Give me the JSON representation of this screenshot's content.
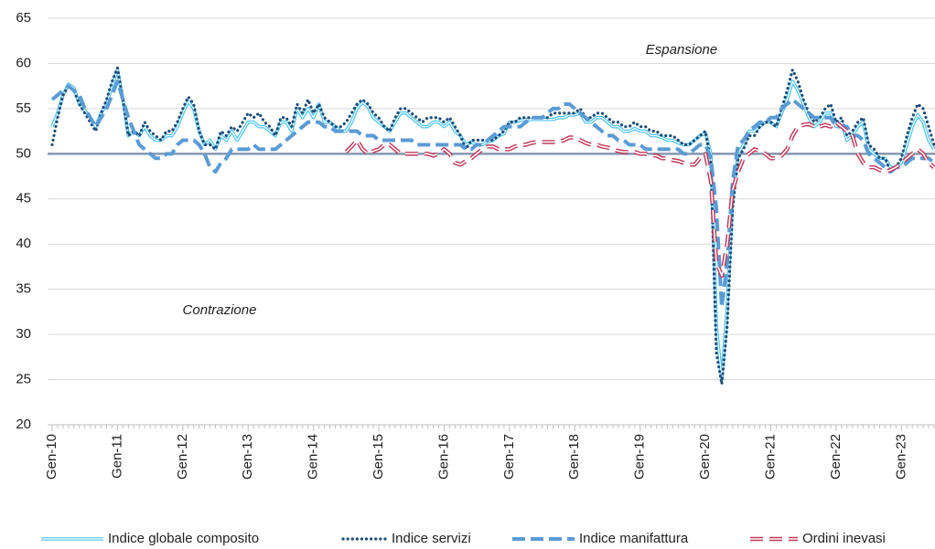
{
  "chart_data": {
    "type": "line",
    "annotations": [
      "Espansione",
      "Contrazione"
    ],
    "categories": [
      "Gen-10",
      null,
      null,
      null,
      null,
      null,
      null,
      null,
      null,
      null,
      null,
      null,
      "Gen-11",
      null,
      null,
      null,
      null,
      null,
      null,
      null,
      null,
      null,
      null,
      null,
      "Gen-12",
      null,
      null,
      null,
      null,
      null,
      null,
      null,
      null,
      null,
      null,
      null,
      "Gen-13",
      null,
      null,
      null,
      null,
      null,
      null,
      null,
      null,
      null,
      null,
      null,
      "Gen-14",
      null,
      null,
      null,
      null,
      null,
      null,
      null,
      null,
      null,
      null,
      null,
      "Gen-15",
      null,
      null,
      null,
      null,
      null,
      null,
      null,
      null,
      null,
      null,
      null,
      "Gen-16",
      null,
      null,
      null,
      null,
      null,
      null,
      null,
      null,
      null,
      null,
      null,
      "Gen-17",
      null,
      null,
      null,
      null,
      null,
      null,
      null,
      null,
      null,
      null,
      null,
      "Gen-18",
      null,
      null,
      null,
      null,
      null,
      null,
      null,
      null,
      null,
      null,
      null,
      "Gen-19",
      null,
      null,
      null,
      null,
      null,
      null,
      null,
      null,
      null,
      null,
      null,
      "Gen-20",
      null,
      null,
      null,
      null,
      null,
      null,
      null,
      null,
      null,
      null,
      null,
      "Gen-21",
      null,
      null,
      null,
      null,
      null,
      null,
      null,
      null,
      null,
      null,
      null,
      "Gen-22",
      null,
      null,
      null,
      null,
      null,
      null,
      null,
      null,
      null,
      null,
      null,
      "Gen-23",
      null,
      null,
      null,
      null,
      null,
      null
    ],
    "series": [
      {
        "name": "Indice globale composito",
        "color": "#4dc3ef",
        "style": "double",
        "values": [
          53,
          54.5,
          56.5,
          57.7,
          57.3,
          55.5,
          54.8,
          54,
          53,
          54.5,
          55.5,
          57.5,
          59.3,
          56,
          52,
          52.5,
          52,
          53,
          52,
          51.5,
          51.5,
          52,
          52,
          53,
          54.5,
          55.8,
          55,
          52.5,
          51,
          51.5,
          50.5,
          52,
          51.5,
          52.5,
          51.5,
          52.5,
          53.5,
          53.5,
          53,
          53,
          52.5,
          52,
          53.5,
          53.5,
          52.5,
          55,
          54,
          55,
          54,
          55.5,
          53.5,
          53.5,
          53,
          52.5,
          52.5,
          53.5,
          55,
          55.7,
          55.2,
          54,
          53.5,
          53,
          52.5,
          53.5,
          54.5,
          54.5,
          54,
          53.5,
          53,
          53,
          53.5,
          53.5,
          53,
          53.5,
          52.5,
          52,
          51,
          51.3,
          51,
          51,
          51.3,
          51.5,
          52,
          52.2,
          53.5,
          53.5,
          53.7,
          53.8,
          53.8,
          53.8,
          53.8,
          53.8,
          53.8,
          54,
          54,
          54.3,
          54.3,
          54.5,
          53.5,
          53.5,
          54,
          54,
          53.5,
          53,
          53,
          52.5,
          52.5,
          52.8,
          52.5,
          52.5,
          52,
          52,
          51.8,
          51.5,
          51.5,
          51.2,
          51,
          51,
          51.5,
          52,
          52.3,
          50,
          31,
          25,
          33,
          45,
          50,
          51,
          52.5,
          52.5,
          53,
          53.5,
          53.5,
          53,
          54.5,
          56,
          58,
          57,
          55.5,
          54,
          53,
          53.5,
          54.5,
          54.5,
          53,
          53.5,
          51.5,
          52,
          53,
          53.5,
          50.5,
          50,
          49.5,
          49.5,
          48.5,
          48.5,
          49,
          51,
          53,
          54.3,
          53.5,
          51.5,
          50.5
        ]
      },
      {
        "name": "Indice servizi",
        "color": "#1f4e79",
        "style": "dotted",
        "values": [
          51,
          54,
          56.5,
          57.5,
          57,
          55.5,
          54.5,
          53.5,
          52.5,
          54.5,
          56,
          58,
          59.5,
          56,
          52,
          52.5,
          52,
          53.5,
          52.5,
          52,
          51.5,
          52.5,
          52.5,
          53.5,
          55,
          56.3,
          55.5,
          52.5,
          51,
          51,
          50.5,
          52.5,
          52,
          53,
          52.5,
          53.5,
          54.5,
          54,
          54.5,
          53.5,
          53,
          52,
          54,
          54,
          53,
          55.5,
          54.5,
          56,
          54.5,
          55.5,
          54,
          53.5,
          53,
          53,
          53.5,
          54.5,
          55.5,
          56,
          55.5,
          54.5,
          54,
          53,
          52.5,
          54,
          55,
          55,
          54.5,
          54,
          53.5,
          54,
          54,
          54,
          53.5,
          54,
          53,
          52,
          50.5,
          51.5,
          51.5,
          51.5,
          51.5,
          51.5,
          52,
          52.5,
          53.5,
          53.5,
          54,
          54,
          54,
          54,
          54,
          54,
          54.5,
          54.5,
          54.5,
          54.5,
          54.5,
          55,
          54,
          54,
          54.5,
          54.5,
          54,
          53.5,
          53.5,
          53,
          53,
          53.5,
          53,
          53,
          52.5,
          52.5,
          52,
          52,
          52,
          51.5,
          51,
          51,
          51.5,
          52,
          52.5,
          49,
          28,
          24.5,
          31,
          44,
          49.5,
          50.5,
          52,
          52,
          53,
          53.5,
          53.5,
          53,
          55,
          57,
          59.3,
          58,
          56,
          54.5,
          53.5,
          54,
          55,
          55.5,
          53.5,
          54,
          52,
          52.5,
          53.5,
          54,
          51,
          50.5,
          49.5,
          49.5,
          48,
          48.5,
          49.5,
          52,
          54,
          55.5,
          55,
          53,
          51
        ]
      },
      {
        "name": "Indice manifattura",
        "color": "#5b9bd5",
        "style": "dashed",
        "values": [
          56,
          56.5,
          57,
          57.5,
          57,
          56.5,
          55,
          54,
          53,
          54,
          55,
          56.5,
          58,
          56,
          54,
          52.5,
          51,
          50.5,
          50,
          49.5,
          49.5,
          50,
          50,
          51,
          51.5,
          51.5,
          51.5,
          51,
          50,
          48.5,
          48,
          49,
          49.5,
          50.5,
          50.5,
          50.5,
          50.5,
          51,
          50.5,
          50.5,
          50.5,
          50.5,
          51,
          51.5,
          52,
          52.5,
          53,
          53.5,
          53.5,
          53.5,
          53,
          53,
          52.5,
          52.5,
          52.5,
          52.5,
          52.5,
          52,
          52,
          52,
          51.5,
          51.5,
          51.5,
          51.5,
          51.5,
          51.5,
          51.5,
          51,
          51,
          51,
          51,
          51,
          51,
          51,
          51,
          51,
          50.5,
          50.5,
          51,
          51,
          51.5,
          52,
          52.5,
          53,
          53,
          53,
          53,
          53.5,
          54,
          54,
          54,
          54.5,
          55,
          55,
          55.5,
          55.5,
          55,
          54.5,
          54,
          53.5,
          53,
          52.5,
          52,
          52,
          51.5,
          51.5,
          51,
          51,
          51,
          50.5,
          50.5,
          50.5,
          50.5,
          50.5,
          50.5,
          50.5,
          50,
          50,
          50.5,
          51,
          51,
          49.5,
          44,
          33,
          38,
          47,
          51,
          51.5,
          52.5,
          53,
          53.5,
          53.5,
          54,
          54,
          55,
          55.5,
          56,
          55.5,
          55,
          54.5,
          54,
          54,
          54,
          54,
          53,
          53,
          53,
          52,
          52,
          51.5,
          50,
          49.5,
          49,
          48.5,
          48,
          48.5,
          48.5,
          49,
          49.5,
          49.5,
          49.5,
          49.5,
          49
        ]
      },
      {
        "name": "Ordini inevasi",
        "color": "#c0395a",
        "style": "hollow-dashed",
        "values": [
          null,
          null,
          null,
          null,
          null,
          null,
          null,
          null,
          null,
          null,
          null,
          null,
          null,
          null,
          null,
          null,
          null,
          null,
          null,
          null,
          null,
          null,
          null,
          null,
          null,
          null,
          null,
          null,
          null,
          null,
          null,
          null,
          null,
          null,
          null,
          null,
          null,
          null,
          null,
          null,
          null,
          null,
          null,
          null,
          null,
          null,
          null,
          null,
          null,
          null,
          null,
          null,
          null,
          null,
          50.2,
          50.8,
          51.5,
          50.5,
          50,
          50.3,
          50.5,
          51,
          51,
          50.5,
          50,
          50,
          50,
          50,
          50,
          50,
          49.8,
          50,
          50.5,
          50,
          49,
          48.8,
          49.2,
          49.5,
          50,
          50.5,
          50.8,
          50.8,
          50.5,
          50.5,
          50.5,
          50.8,
          51,
          51,
          51.2,
          51.3,
          51.3,
          51.3,
          51.3,
          51.3,
          51.5,
          51.8,
          51.8,
          51.5,
          51.2,
          51,
          51,
          50.8,
          50.7,
          50.5,
          50.3,
          50.2,
          50.2,
          50.2,
          50,
          50,
          49.8,
          49.8,
          49.5,
          49.5,
          49.3,
          49.2,
          49,
          48.8,
          48.8,
          49.5,
          50,
          47,
          38,
          36.5,
          40,
          46,
          48,
          49.5,
          50,
          50.5,
          50.3,
          50,
          49.5,
          49.5,
          49.8,
          50.5,
          52,
          53,
          53.2,
          53.3,
          53,
          53,
          53.2,
          53,
          53.5,
          53,
          52.5,
          52,
          50,
          49,
          48.5,
          48.5,
          48.2,
          48,
          48.2,
          48.5,
          49,
          49.5,
          50,
          50.5,
          50,
          49,
          48.5
        ]
      }
    ],
    "ylim": [
      20,
      65
    ],
    "yticks": [
      20,
      25,
      30,
      35,
      40,
      45,
      50,
      55,
      60,
      65
    ],
    "grid": true,
    "reference_line": 50,
    "legend": "bottom"
  }
}
